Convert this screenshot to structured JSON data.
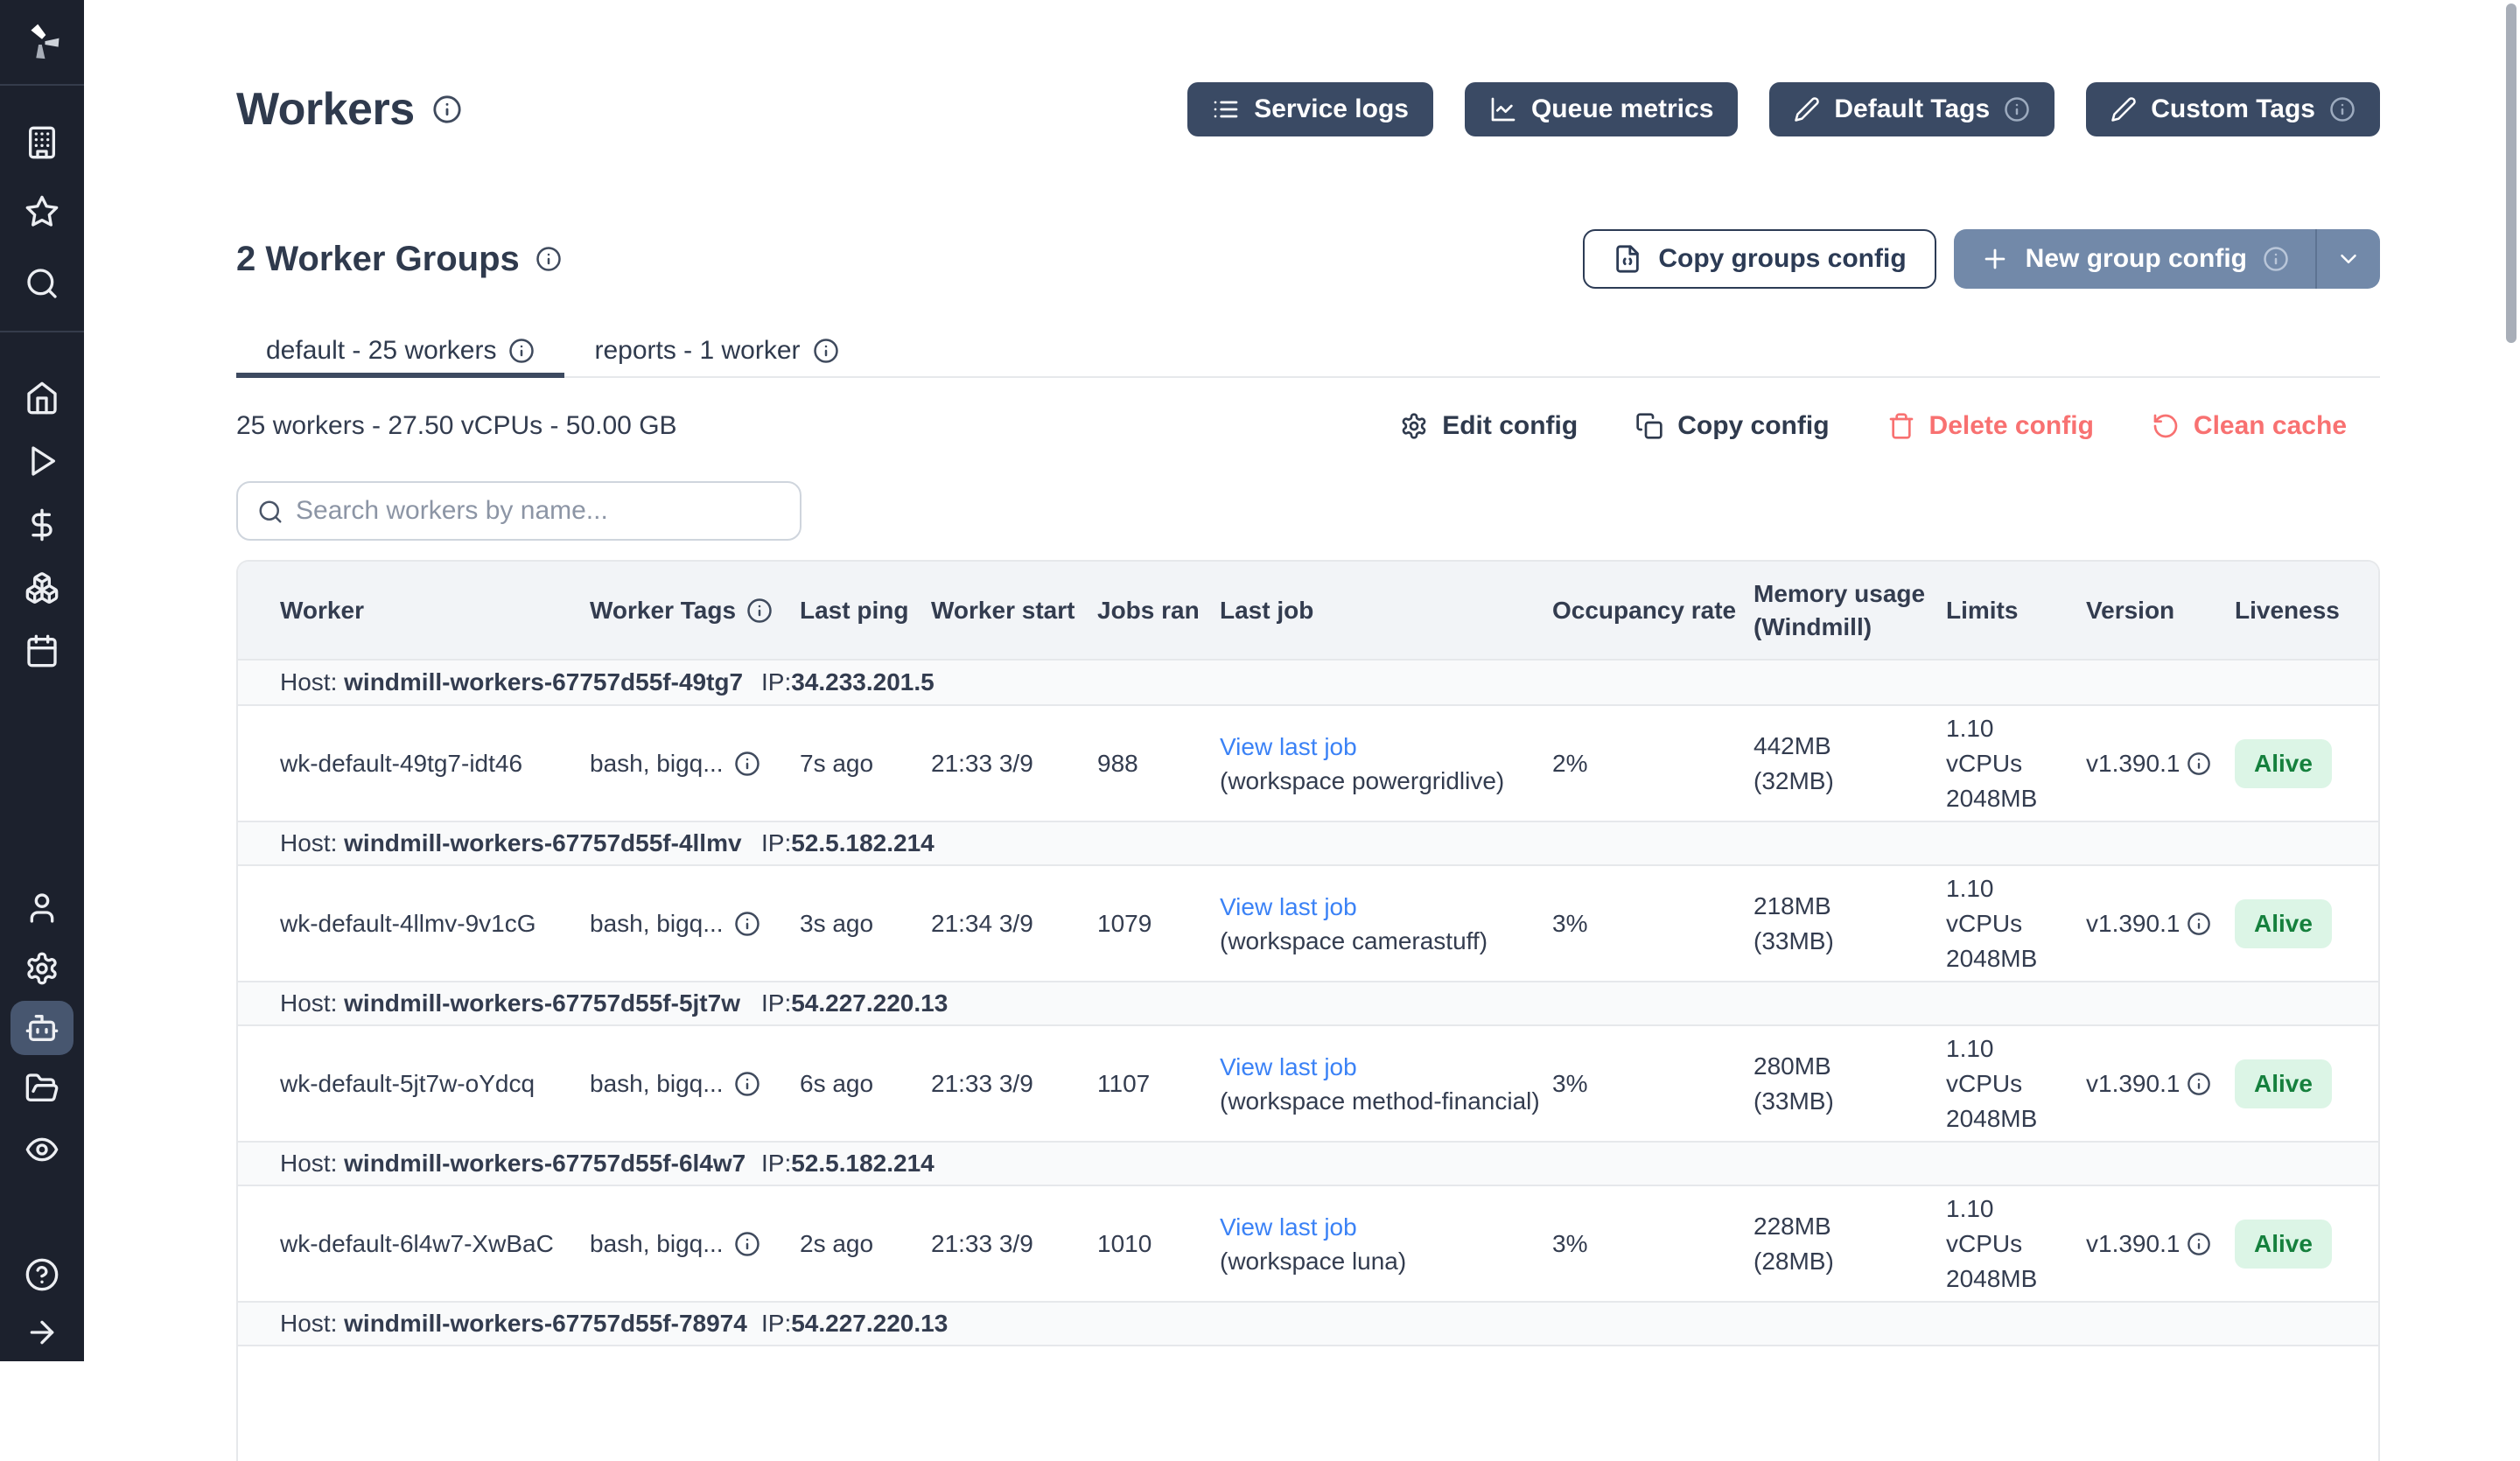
{
  "page": {
    "title": "Workers"
  },
  "topbar_buttons": [
    {
      "label": "Service logs",
      "icon": "list-icon",
      "has_info": false
    },
    {
      "label": "Queue metrics",
      "icon": "chart-icon",
      "has_info": false
    },
    {
      "label": "Default Tags",
      "icon": "pencil-icon",
      "has_info": true
    },
    {
      "label": "Custom Tags",
      "icon": "pencil-icon",
      "has_info": true
    }
  ],
  "groups_section": {
    "title": "2 Worker Groups",
    "copy_button": "Copy groups config",
    "new_button": "New group config"
  },
  "tabs": [
    {
      "label": "default - 25 workers",
      "active": true
    },
    {
      "label": "reports - 1 worker",
      "active": false
    }
  ],
  "group_config": {
    "summary": "25 workers - 27.50 vCPUs - 50.00 GB",
    "actions": [
      {
        "label": "Edit config",
        "icon": "gear-icon",
        "danger": false
      },
      {
        "label": "Copy config",
        "icon": "copy-icon",
        "danger": false
      },
      {
        "label": "Delete config",
        "icon": "trash-icon",
        "danger": true
      },
      {
        "label": "Clean cache",
        "icon": "refresh-icon",
        "danger": true
      }
    ]
  },
  "search": {
    "placeholder": "Search workers by name..."
  },
  "table": {
    "columns": [
      "Worker",
      "Worker Tags",
      "Last ping",
      "Worker start",
      "Jobs ran",
      "Last job",
      "Occupancy rate",
      "Memory usage (Windmill)",
      "Limits",
      "Version",
      "Liveness"
    ],
    "host_label": "Host:",
    "ip_label": "IP:",
    "host_groups": [
      {
        "host": "windmill-workers-67757d55f-49tg7",
        "ip": "34.233.201.5",
        "workers": [
          {
            "name": "wk-default-49tg7-idt46",
            "tags": "bash, bigq...",
            "last_ping": "7s ago",
            "worker_start": "21:33 3/9",
            "jobs_ran": "988",
            "last_job_link": "View last job",
            "last_job_workspace": "(workspace powergridlive)",
            "occupancy": "2%",
            "memory": "442MB",
            "memory_windmill": "(32MB)",
            "limit_cpu": "1.10 vCPUs",
            "limit_mem": "2048MB",
            "version": "v1.390.1",
            "liveness": "Alive"
          }
        ]
      },
      {
        "host": "windmill-workers-67757d55f-4llmv",
        "ip": "52.5.182.214",
        "workers": [
          {
            "name": "wk-default-4llmv-9v1cG",
            "tags": "bash, bigq...",
            "last_ping": "3s ago",
            "worker_start": "21:34 3/9",
            "jobs_ran": "1079",
            "last_job_link": "View last job",
            "last_job_workspace": "(workspace camerastuff)",
            "occupancy": "3%",
            "memory": "218MB",
            "memory_windmill": "(33MB)",
            "limit_cpu": "1.10 vCPUs",
            "limit_mem": "2048MB",
            "version": "v1.390.1",
            "liveness": "Alive"
          }
        ]
      },
      {
        "host": "windmill-workers-67757d55f-5jt7w",
        "ip": "54.227.220.13",
        "workers": [
          {
            "name": "wk-default-5jt7w-oYdcq",
            "tags": "bash, bigq...",
            "last_ping": "6s ago",
            "worker_start": "21:33 3/9",
            "jobs_ran": "1107",
            "last_job_link": "View last job",
            "last_job_workspace": "(workspace method-financial)",
            "occupancy": "3%",
            "memory": "280MB",
            "memory_windmill": "(33MB)",
            "limit_cpu": "1.10 vCPUs",
            "limit_mem": "2048MB",
            "version": "v1.390.1",
            "liveness": "Alive"
          }
        ]
      },
      {
        "host": "windmill-workers-67757d55f-6l4w7",
        "ip": "52.5.182.214",
        "workers": [
          {
            "name": "wk-default-6l4w7-XwBaC",
            "tags": "bash, bigq...",
            "last_ping": "2s ago",
            "worker_start": "21:33 3/9",
            "jobs_ran": "1010",
            "last_job_link": "View last job",
            "last_job_workspace": "(workspace luna)",
            "occupancy": "3%",
            "memory": "228MB",
            "memory_windmill": "(28MB)",
            "limit_cpu": "1.10 vCPUs",
            "limit_mem": "2048MB",
            "version": "v1.390.1",
            "liveness": "Alive"
          }
        ]
      },
      {
        "host": "windmill-workers-67757d55f-78974",
        "ip": "54.227.220.13",
        "workers": []
      }
    ]
  },
  "sidebar": {
    "active_item": "workers",
    "icons": [
      "windmill-logo",
      "building",
      "star",
      "search",
      "home",
      "play",
      "dollar",
      "boxes",
      "calendar",
      "user",
      "settings",
      "robot",
      "folder-open",
      "eye",
      "help",
      "arrow-right"
    ]
  },
  "colors": {
    "sidebar_bg": "#1c212d",
    "sidebar_active": "#47566f",
    "dark_button": "#3a4a64",
    "primary_button": "#7289a9",
    "danger": "#f87171",
    "link": "#3b82f6",
    "alive_bg": "#dcf5e6",
    "alive_text": "#15803d",
    "header_row_bg": "#f2f4f7",
    "host_row_bg": "#f9fafb"
  }
}
